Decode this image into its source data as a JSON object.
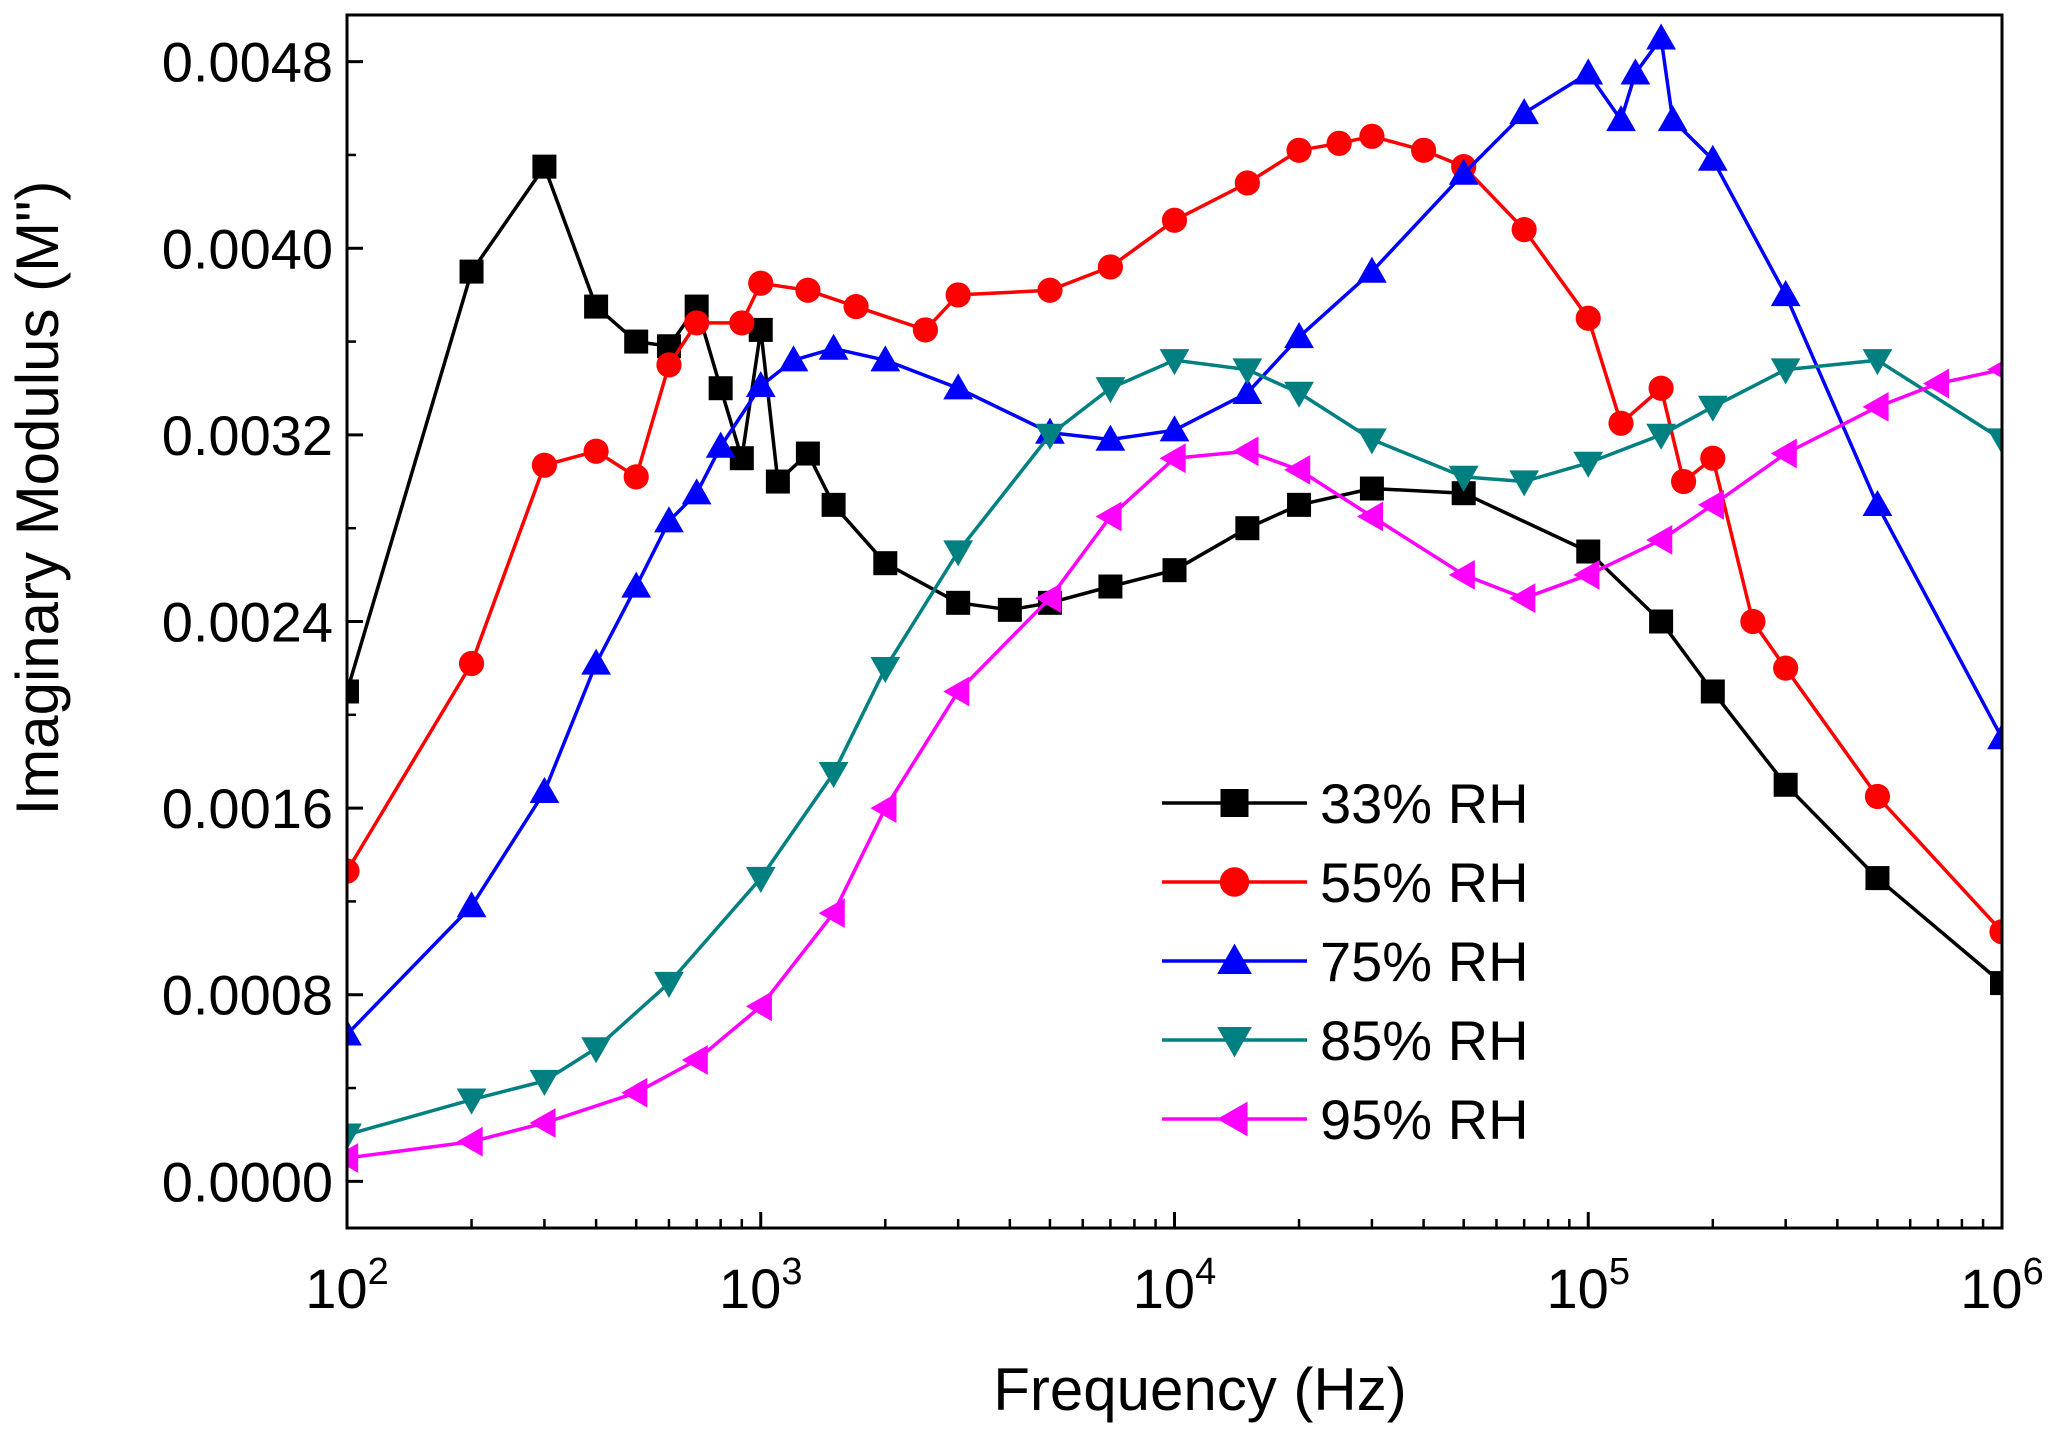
{
  "chart_data": {
    "type": "line",
    "title": "",
    "xlabel": "Frequency (Hz)",
    "ylabel": "Imaginary Modulus (M\")",
    "x_scale": "log",
    "xlim": [
      100,
      1000000
    ],
    "ylim": [
      -0.0002,
      0.005
    ],
    "x_ticks": [
      {
        "value": 100,
        "base": "10",
        "exp": "2"
      },
      {
        "value": 1000,
        "base": "10",
        "exp": "3"
      },
      {
        "value": 10000,
        "base": "10",
        "exp": "4"
      },
      {
        "value": 100000,
        "base": "10",
        "exp": "5"
      },
      {
        "value": 1000000,
        "base": "10",
        "exp": "6"
      }
    ],
    "y_ticks": [
      {
        "value": 0.0,
        "label": "0.0000"
      },
      {
        "value": 0.0008,
        "label": "0.0008"
      },
      {
        "value": 0.0016,
        "label": "0.0016"
      },
      {
        "value": 0.0024,
        "label": "0.0024"
      },
      {
        "value": 0.0032,
        "label": "0.0032"
      },
      {
        "value": 0.004,
        "label": "0.0040"
      },
      {
        "value": 0.0048,
        "label": "0.0048"
      }
    ],
    "grid": false,
    "legend_position": "bottom-right",
    "series": [
      {
        "name": "33% RH",
        "color": "#000000",
        "marker": "square",
        "x": [
          100,
          200,
          300,
          400,
          500,
          600,
          700,
          800,
          900,
          1000,
          1100,
          1300,
          1500,
          2000,
          3000,
          4000,
          5000,
          7000,
          10000,
          15000,
          20000,
          30000,
          50000,
          100000,
          150000,
          200000,
          300000,
          500000,
          1000000
        ],
        "y": [
          0.0021,
          0.0039,
          0.00435,
          0.00375,
          0.0036,
          0.00358,
          0.00375,
          0.0034,
          0.0031,
          0.00365,
          0.003,
          0.00312,
          0.0029,
          0.00265,
          0.00248,
          0.00245,
          0.00248,
          0.00255,
          0.00262,
          0.0028,
          0.0029,
          0.00297,
          0.00295,
          0.0027,
          0.0024,
          0.0021,
          0.0017,
          0.0013,
          0.00085
        ]
      },
      {
        "name": "55% RH",
        "color": "#ff0000",
        "marker": "circle",
        "x": [
          100,
          200,
          300,
          400,
          500,
          600,
          700,
          900,
          1000,
          1300,
          1700,
          2500,
          3000,
          5000,
          7000,
          10000,
          15000,
          20000,
          25000,
          30000,
          40000,
          50000,
          70000,
          100000,
          120000,
          150000,
          170000,
          200000,
          250000,
          300000,
          500000,
          1000000
        ],
        "y": [
          0.00133,
          0.00222,
          0.00307,
          0.00313,
          0.00302,
          0.0035,
          0.00368,
          0.00368,
          0.00385,
          0.00382,
          0.00375,
          0.00365,
          0.0038,
          0.00382,
          0.00392,
          0.00412,
          0.00428,
          0.00442,
          0.00445,
          0.00448,
          0.00442,
          0.00435,
          0.00408,
          0.0037,
          0.00325,
          0.0034,
          0.003,
          0.0031,
          0.0024,
          0.0022,
          0.00165,
          0.00107
        ]
      },
      {
        "name": "75% RH",
        "color": "#0000ff",
        "marker": "triangle-up",
        "x": [
          100,
          200,
          300,
          400,
          500,
          600,
          700,
          800,
          1000,
          1200,
          1500,
          2000,
          3000,
          5000,
          7000,
          10000,
          15000,
          20000,
          30000,
          50000,
          70000,
          100000,
          120000,
          130000,
          150000,
          160000,
          200000,
          300000,
          500000,
          1000000
        ],
        "y": [
          0.00063,
          0.00118,
          0.00167,
          0.00222,
          0.00255,
          0.00283,
          0.00295,
          0.00315,
          0.00341,
          0.00352,
          0.00357,
          0.00352,
          0.0034,
          0.00321,
          0.00318,
          0.00322,
          0.00338,
          0.00362,
          0.0039,
          0.00432,
          0.00458,
          0.00475,
          0.00455,
          0.00475,
          0.0049,
          0.00455,
          0.00438,
          0.0038,
          0.0029,
          0.0019
        ]
      },
      {
        "name": "85% RH",
        "color": "#008080",
        "marker": "triangle-down",
        "x": [
          100,
          200,
          300,
          400,
          600,
          1000,
          1500,
          2000,
          3000,
          5000,
          7000,
          10000,
          15000,
          20000,
          30000,
          50000,
          70000,
          100000,
          150000,
          200000,
          300000,
          500000,
          1000000
        ],
        "y": [
          0.0002,
          0.00035,
          0.00043,
          0.00057,
          0.00085,
          0.0013,
          0.00175,
          0.0022,
          0.0027,
          0.0032,
          0.0034,
          0.00352,
          0.00348,
          0.00338,
          0.00318,
          0.00302,
          0.003,
          0.00308,
          0.0032,
          0.00332,
          0.00348,
          0.00352,
          0.00318
        ]
      },
      {
        "name": "95% RH",
        "color": "#ff00ff",
        "marker": "triangle-left",
        "x": [
          100,
          200,
          300,
          500,
          700,
          1000,
          1500,
          2000,
          3000,
          5000,
          7000,
          10000,
          15000,
          20000,
          30000,
          50000,
          70000,
          100000,
          150000,
          200000,
          300000,
          500000,
          700000,
          1000000
        ],
        "y": [
          0.0001,
          0.00017,
          0.00025,
          0.00038,
          0.00052,
          0.00075,
          0.00115,
          0.0016,
          0.0021,
          0.0025,
          0.00285,
          0.0031,
          0.00313,
          0.00305,
          0.00285,
          0.0026,
          0.0025,
          0.0026,
          0.00275,
          0.0029,
          0.00312,
          0.00332,
          0.00342,
          0.00348
        ]
      }
    ]
  }
}
